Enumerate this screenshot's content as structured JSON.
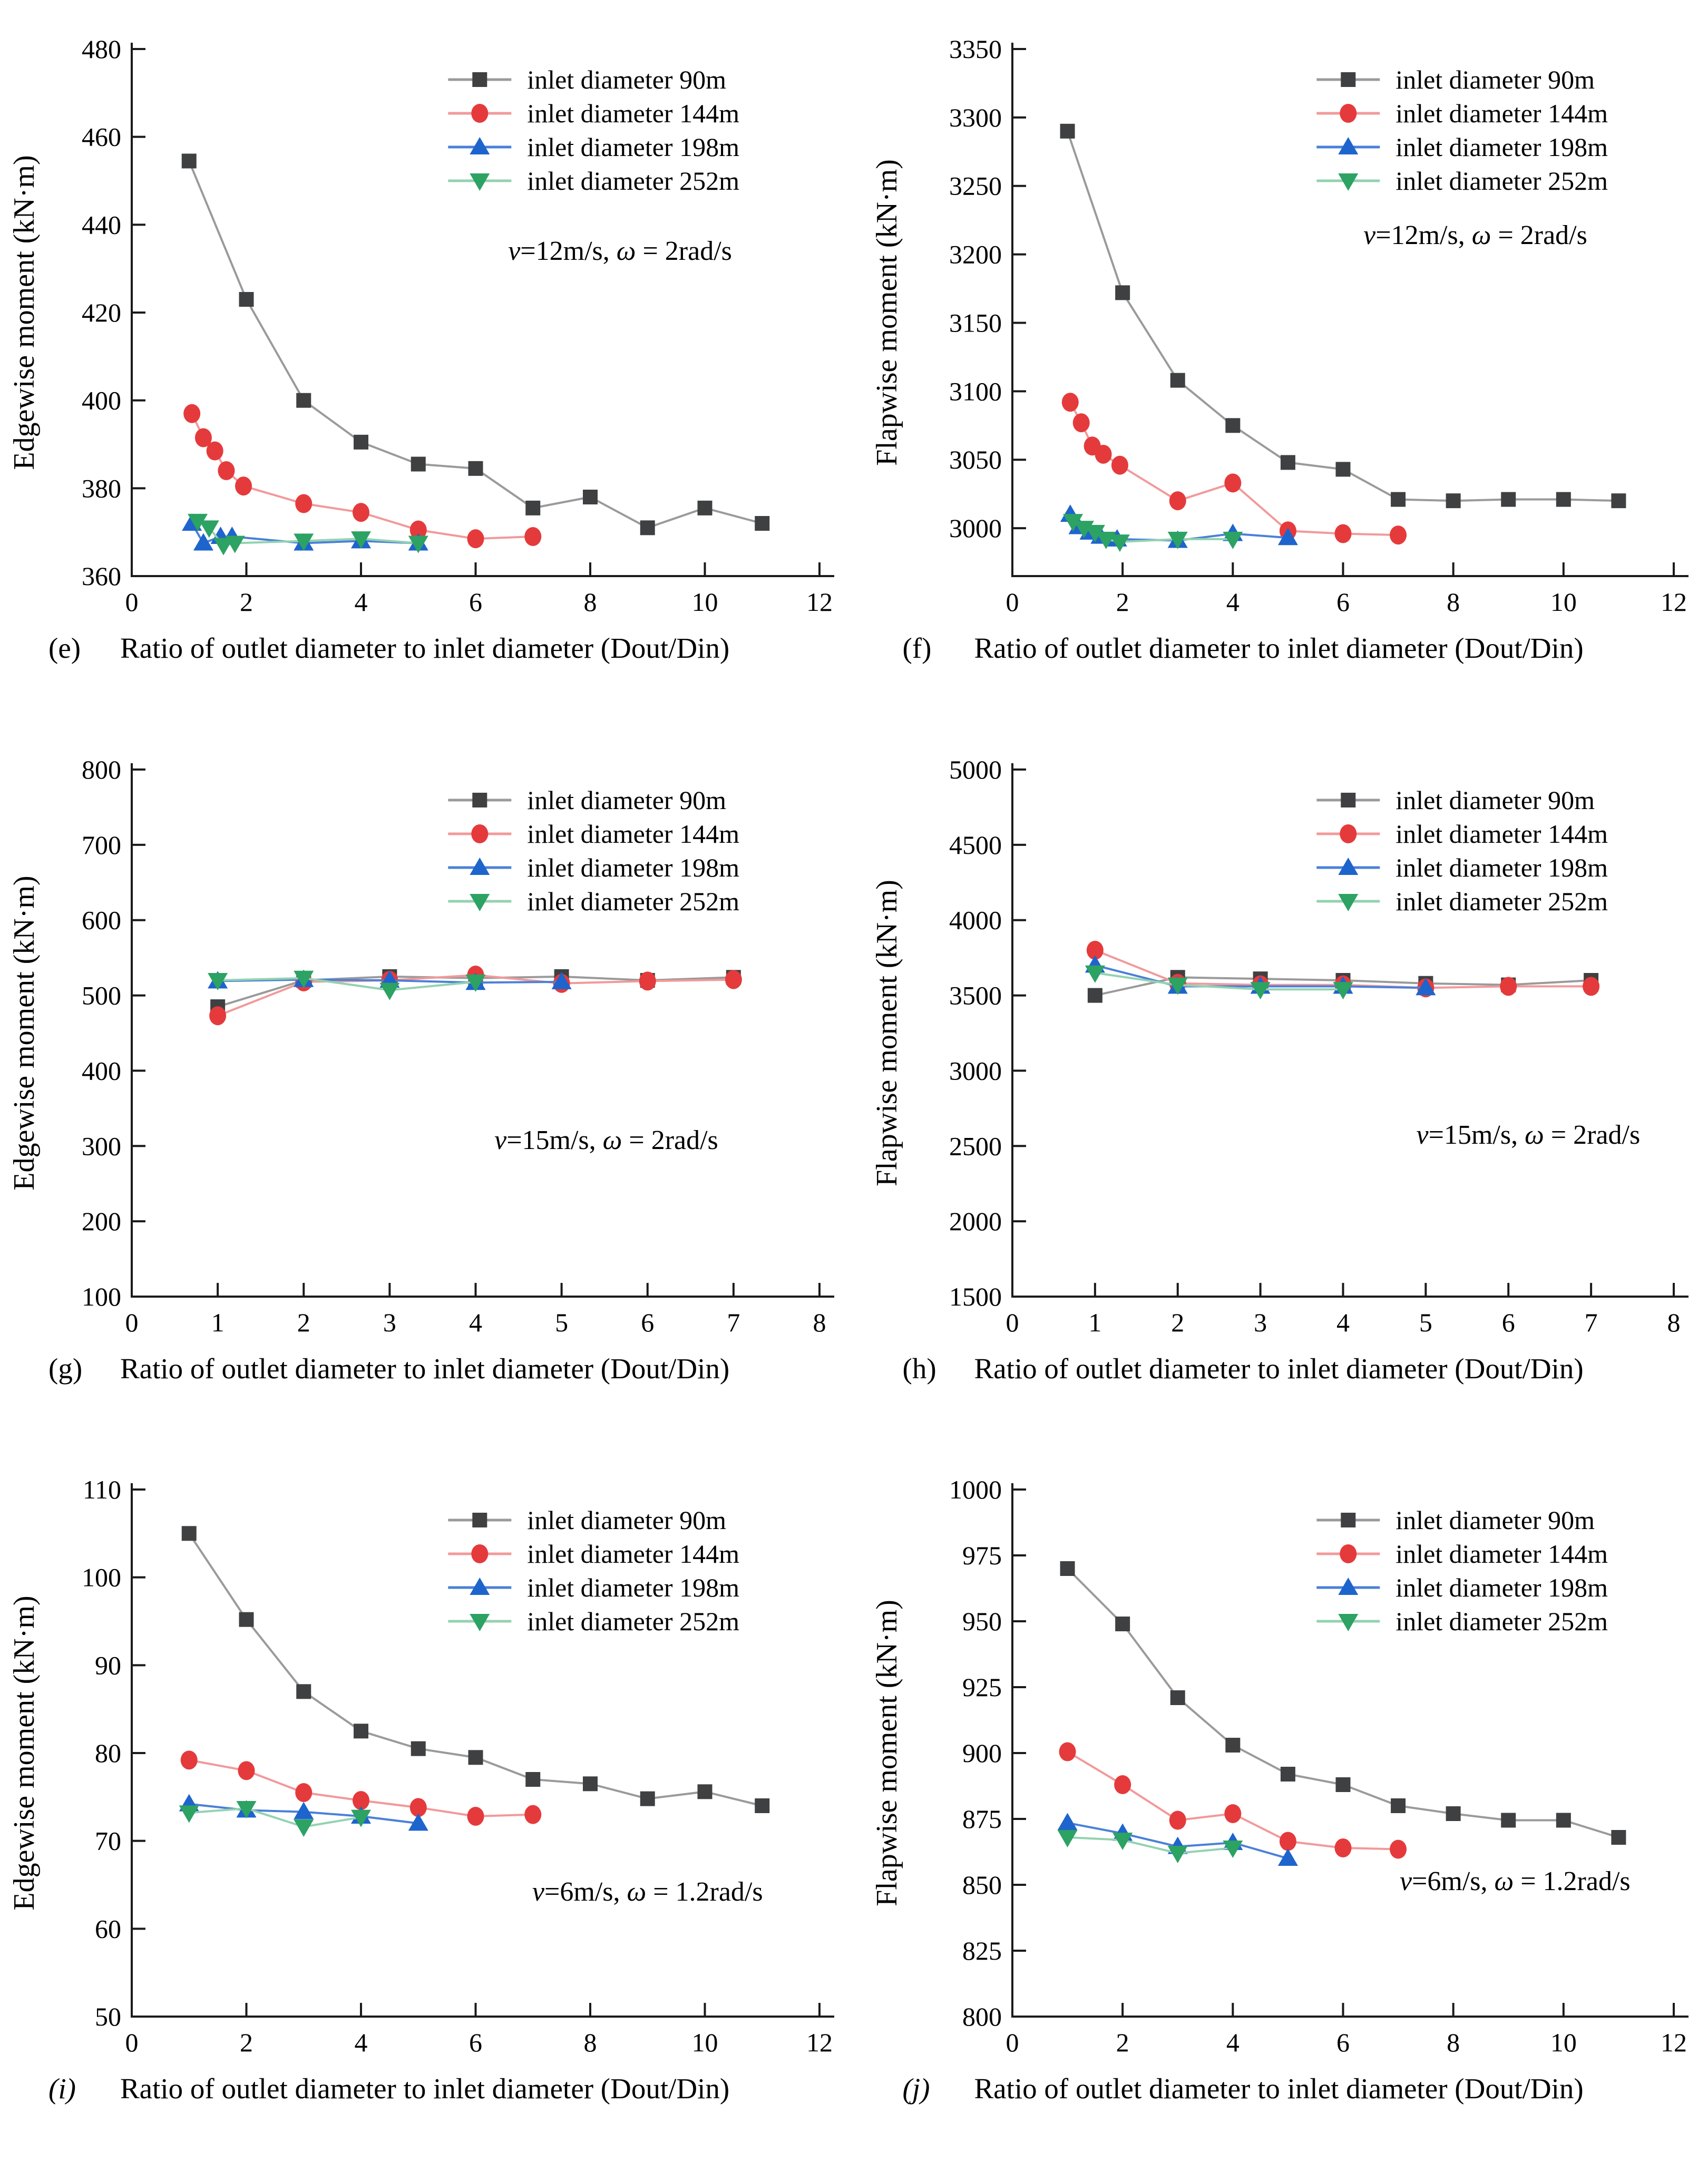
{
  "figure": {
    "legend": [
      "inlet diameter 90m",
      "inlet diameter 144m",
      "inlet diameter 198m",
      "inlet diameter 252m"
    ],
    "series_styles": {
      "inlet diameter 90m": {
        "marker": "square",
        "color": "#3f4041",
        "line": "#9a9a9a"
      },
      "inlet diameter 144m": {
        "marker": "circle",
        "color": "#e53a3c",
        "line": "#f2999a"
      },
      "inlet diameter 198m": {
        "marker": "triangle-up",
        "color": "#1e64cd",
        "line": "#4a80d9"
      },
      "inlet diameter 252m": {
        "marker": "triangle-down",
        "color": "#2ca263",
        "line": "#93d2b0"
      }
    },
    "axis_color": "#1a1a1a"
  },
  "chart_data": [
    {
      "id": "e",
      "type": "line",
      "caption_label": "(e)",
      "caption": "Ratio of outlet diameter to inlet diameter (Dout/Din)",
      "ylabel": "Edgewise moment (kN·m)",
      "xlabel": "Ratio of outlet diameter to inlet diameter (Dout/Din)",
      "annotation": {
        "var1": "v",
        "eq1": "=12m/s, ",
        "var2": "ω",
        "eq2": " = 2rad/s"
      },
      "ann_pos": [
        0.71,
        0.4
      ],
      "xlim": [
        0,
        12
      ],
      "xtick_step": 2,
      "ylim": [
        360,
        480
      ],
      "yticks": [
        360,
        380,
        400,
        420,
        440,
        460,
        480
      ],
      "series": [
        {
          "name": "inlet diameter 90m",
          "x": [
            1,
            2,
            3,
            4,
            5,
            6,
            7,
            8,
            9,
            10,
            11
          ],
          "y": [
            454.5,
            423,
            400,
            390.5,
            385.5,
            384.5,
            375.5,
            378,
            371,
            375.5,
            372
          ]
        },
        {
          "name": "inlet diameter 144m",
          "x": [
            1.05,
            1.25,
            1.45,
            1.65,
            1.95,
            3,
            4,
            5,
            6,
            7
          ],
          "y": [
            397,
            391.5,
            388.5,
            384,
            380.5,
            376.5,
            374.5,
            370.5,
            368.5,
            369
          ]
        },
        {
          "name": "inlet diameter 198m",
          "x": [
            1.05,
            1.25,
            1.55,
            1.75,
            3,
            4,
            5
          ],
          "y": [
            372,
            367.5,
            369,
            369,
            367.5,
            368,
            367.5
          ]
        },
        {
          "name": "inlet diameter 252m",
          "x": [
            1.15,
            1.35,
            1.6,
            1.8,
            3,
            4,
            5
          ],
          "y": [
            372.5,
            371,
            367,
            367.5,
            368,
            368.5,
            367.5
          ]
        }
      ]
    },
    {
      "id": "f",
      "type": "line",
      "caption_label": "(f)",
      "caption": "Ratio of outlet diameter to inlet diameter (Dout/Din)",
      "ylabel": "Flapwise moment (kN·m)",
      "xlabel": "Ratio of outlet diameter to inlet diameter (Dout/Din)",
      "annotation": {
        "var1": "v",
        "eq1": "=12m/s, ",
        "var2": "ω",
        "eq2": " = 2rad/s"
      },
      "ann_pos": [
        0.7,
        0.37
      ],
      "xlim": [
        0,
        12
      ],
      "xtick_step": 2,
      "ylim": [
        2965,
        3350
      ],
      "yticks": [
        3000,
        3050,
        3100,
        3150,
        3200,
        3250,
        3300,
        3350
      ],
      "series": [
        {
          "name": "inlet diameter 90m",
          "x": [
            1,
            2,
            3,
            4,
            5,
            6,
            7,
            8,
            9,
            10,
            11
          ],
          "y": [
            3290,
            3172,
            3108,
            3075,
            3048,
            3043,
            3021,
            3020,
            3021,
            3021,
            3020
          ]
        },
        {
          "name": "inlet diameter 144m",
          "x": [
            1.05,
            1.25,
            1.45,
            1.65,
            1.95,
            3,
            4,
            5,
            6,
            7
          ],
          "y": [
            3092,
            3077,
            3060,
            3054,
            3046,
            3020,
            3033,
            2998,
            2996,
            2995
          ]
        },
        {
          "name": "inlet diameter 198m",
          "x": [
            1.05,
            1.2,
            1.4,
            1.6,
            1.9,
            3,
            4,
            5
          ],
          "y": [
            3010,
            3001,
            2997,
            2994,
            2992,
            2991,
            2996,
            2993
          ]
        },
        {
          "name": "inlet diameter 252m",
          "x": [
            1.1,
            1.3,
            1.5,
            1.7,
            1.95,
            3,
            4
          ],
          "y": [
            3005,
            3000,
            2997,
            2992,
            2990,
            2992,
            2992
          ]
        }
      ]
    },
    {
      "id": "g",
      "type": "line",
      "caption_label": "(g)",
      "caption": "Ratio of outlet diameter to inlet diameter (Dout/Din)",
      "ylabel": "Edgewise moment (kN·m)",
      "xlabel": "Ratio of outlet diameter to inlet diameter (Dout/Din)",
      "annotation": {
        "var1": "v",
        "eq1": "=15m/s, ",
        "var2": "ω",
        "eq2": " = 2rad/s"
      },
      "ann_pos": [
        0.69,
        0.72
      ],
      "xlim": [
        0,
        8
      ],
      "xtick_step": 1,
      "ylim": [
        100,
        800
      ],
      "yticks": [
        100,
        200,
        300,
        400,
        500,
        600,
        700,
        800
      ],
      "series": [
        {
          "name": "inlet diameter 90m",
          "x": [
            1,
            2,
            3,
            4,
            5,
            6,
            7
          ],
          "y": [
            485,
            520,
            525,
            523,
            525,
            520,
            524
          ]
        },
        {
          "name": "inlet diameter 144m",
          "x": [
            1,
            2,
            3,
            4,
            5,
            6,
            7
          ],
          "y": [
            473,
            518,
            520,
            527,
            516,
            519,
            521
          ]
        },
        {
          "name": "inlet diameter 198m",
          "x": [
            1,
            2,
            3,
            4,
            5
          ],
          "y": [
            519,
            521,
            520,
            517,
            518
          ]
        },
        {
          "name": "inlet diameter 252m",
          "x": [
            1,
            2,
            3,
            4
          ],
          "y": [
            520,
            523,
            507,
            518
          ]
        }
      ]
    },
    {
      "id": "h",
      "type": "line",
      "caption_label": "(h)",
      "caption": "Ratio of outlet diameter to inlet diameter (Dout/Din)",
      "ylabel": "Flapwise moment (kN·m)",
      "xlabel": "Ratio of outlet diameter to inlet diameter (Dout/Din)",
      "annotation": {
        "var1": "v",
        "eq1": "=15m/s, ",
        "var2": "ω",
        "eq2": " = 2rad/s"
      },
      "ann_pos": [
        0.78,
        0.71
      ],
      "xlim": [
        0,
        8
      ],
      "xtick_step": 1,
      "ylim": [
        1500,
        5000
      ],
      "yticks": [
        1500,
        2000,
        2500,
        3000,
        3500,
        4000,
        4500,
        5000
      ],
      "series": [
        {
          "name": "inlet diameter 90m",
          "x": [
            1,
            2,
            3,
            4,
            5,
            6,
            7
          ],
          "y": [
            3500,
            3620,
            3610,
            3600,
            3580,
            3570,
            3600
          ]
        },
        {
          "name": "inlet diameter 144m",
          "x": [
            1,
            2,
            3,
            4,
            5,
            6,
            7
          ],
          "y": [
            3800,
            3580,
            3570,
            3570,
            3550,
            3560,
            3560
          ]
        },
        {
          "name": "inlet diameter 198m",
          "x": [
            1,
            2,
            3,
            4,
            5
          ],
          "y": [
            3700,
            3560,
            3560,
            3560,
            3550
          ]
        },
        {
          "name": "inlet diameter 252m",
          "x": [
            1,
            2,
            3,
            4
          ],
          "y": [
            3650,
            3570,
            3540,
            3540
          ]
        }
      ]
    },
    {
      "id": "i",
      "type": "line",
      "caption_label": "(i)",
      "caption": "Ratio of outlet diameter to inlet diameter (Dout/Din)",
      "ylabel": "Edgewise moment (kN·m)",
      "xlabel": "Ratio of outlet diameter to inlet diameter (Dout/Din)",
      "annotation": {
        "var1": "v",
        "eq1": "=6m/s, ",
        "var2": "ω",
        "eq2": " = 1.2rad/s"
      },
      "ann_pos": [
        0.75,
        0.78
      ],
      "xlim": [
        0,
        12
      ],
      "xtick_step": 2,
      "ylim": [
        50,
        110
      ],
      "yticks": [
        50,
        60,
        70,
        80,
        90,
        100,
        110
      ],
      "series": [
        {
          "name": "inlet diameter 90m",
          "x": [
            1,
            2,
            3,
            4,
            5,
            6,
            7,
            8,
            9,
            10,
            11
          ],
          "y": [
            105,
            95.2,
            87,
            82.5,
            80.5,
            79.5,
            77,
            76.5,
            74.8,
            75.6,
            74
          ]
        },
        {
          "name": "inlet diameter 144m",
          "x": [
            1,
            2,
            3,
            4,
            5,
            6,
            7
          ],
          "y": [
            79.2,
            78,
            75.5,
            74.6,
            73.8,
            72.8,
            73
          ]
        },
        {
          "name": "inlet diameter 198m",
          "x": [
            1,
            2,
            3,
            4,
            5
          ],
          "y": [
            74.2,
            73.5,
            73.3,
            72.8,
            72
          ]
        },
        {
          "name": "inlet diameter 252m",
          "x": [
            1,
            2,
            3,
            4
          ],
          "y": [
            73.2,
            73.7,
            71.6,
            72.7
          ]
        }
      ]
    },
    {
      "id": "j",
      "type": "line",
      "caption_label": "(j)",
      "caption": "Ratio of outlet diameter to inlet diameter (Dout/Din)",
      "ylabel": "Flapwise moment (kN·m)",
      "xlabel": "Ratio of outlet diameter to inlet diameter (Dout/Din)",
      "annotation": {
        "var1": "v",
        "eq1": "=6m/s, ",
        "var2": "ω",
        "eq2": " = 1.2rad/s"
      },
      "ann_pos": [
        0.76,
        0.76
      ],
      "xlim": [
        0,
        12
      ],
      "xtick_step": 2,
      "ylim": [
        800,
        1000
      ],
      "yticks": [
        800,
        825,
        850,
        875,
        900,
        925,
        950,
        975,
        1000
      ],
      "series": [
        {
          "name": "inlet diameter 90m",
          "x": [
            1,
            2,
            3,
            4,
            5,
            6,
            7,
            8,
            9,
            10,
            11
          ],
          "y": [
            970,
            949,
            921,
            903,
            892,
            888,
            880,
            877,
            874.5,
            874.5,
            868
          ]
        },
        {
          "name": "inlet diameter 144m",
          "x": [
            1,
            2,
            3,
            4,
            5,
            6,
            7
          ],
          "y": [
            900.5,
            888,
            874.5,
            877,
            866.5,
            864,
            863.5
          ]
        },
        {
          "name": "inlet diameter 198m",
          "x": [
            1,
            2,
            3,
            4,
            5
          ],
          "y": [
            873.5,
            869.5,
            864.5,
            866,
            860
          ]
        },
        {
          "name": "inlet diameter 252m",
          "x": [
            1,
            2,
            3,
            4
          ],
          "y": [
            868,
            867,
            862,
            864
          ]
        }
      ]
    }
  ]
}
